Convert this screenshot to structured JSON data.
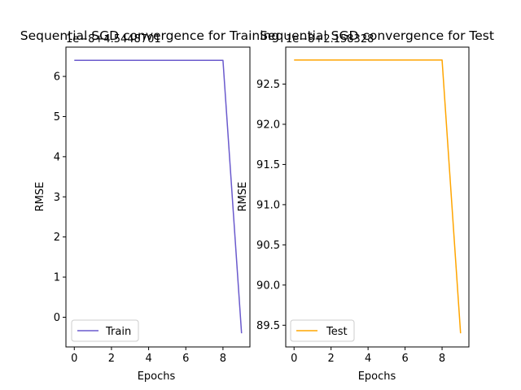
{
  "chart_data": [
    {
      "type": "line",
      "title": "Sequential SGD convergence for Training",
      "xlabel": "Epochs",
      "ylabel": "RMSE",
      "offset_text": "1e−8+4.5448701",
      "x": [
        0,
        1,
        2,
        3,
        4,
        5,
        6,
        7,
        8,
        9
      ],
      "xticks": [
        0,
        2,
        4,
        6,
        8
      ],
      "xtick_labels": [
        "0",
        "2",
        "4",
        "6",
        "8"
      ],
      "xlim": [
        -0.45,
        9.45
      ],
      "yticks": [
        0,
        1,
        2,
        3,
        4,
        5,
        6
      ],
      "ytick_labels": [
        "0",
        "1",
        "2",
        "3",
        "4",
        "5",
        "6"
      ],
      "ylim": [
        -0.74,
        6.73
      ],
      "series": [
        {
          "name": "Train",
          "color": "#6a5acd",
          "values": [
            6.4,
            6.4,
            6.4,
            6.4,
            6.4,
            6.4,
            6.4,
            6.4,
            6.4,
            -0.4
          ]
        }
      ],
      "legend": "lower-left",
      "grid": false
    },
    {
      "type": "line",
      "title": "Sequential SGD convergence for Test",
      "xlabel": "Epochs",
      "ylabel": "RMSE",
      "offset_text": "1e−8+2.158328",
      "x": [
        0,
        1,
        2,
        3,
        4,
        5,
        6,
        7,
        8,
        9
      ],
      "xticks": [
        0,
        2,
        4,
        6,
        8
      ],
      "xtick_labels": [
        "0",
        "2",
        "4",
        "6",
        "8"
      ],
      "xlim": [
        -0.45,
        9.45
      ],
      "yticks": [
        89.5,
        90.0,
        90.5,
        91.0,
        91.5,
        92.0,
        92.5
      ],
      "ytick_labels": [
        "89.5",
        "90.0",
        "90.5",
        "91.0",
        "91.5",
        "92.0",
        "92.5"
      ],
      "ylim": [
        89.23,
        92.96
      ],
      "series": [
        {
          "name": "Test",
          "color": "#ffa500",
          "values": [
            92.8,
            92.8,
            92.8,
            92.8,
            92.8,
            92.8,
            92.8,
            92.8,
            92.8,
            89.4
          ]
        }
      ],
      "legend": "lower-left",
      "grid": false
    }
  ]
}
